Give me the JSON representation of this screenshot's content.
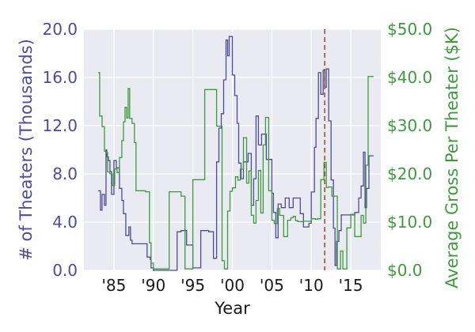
{
  "chart_data": {
    "type": "line",
    "xlabel": "Year",
    "ylabel_left": "# of Theaters (Thousands)",
    "ylabel_right": "Average Gross Per Theater ($K)",
    "xlim": [
      1981.2,
      2018.8
    ],
    "ylim_left": [
      0,
      20
    ],
    "ylim_right": [
      0,
      50
    ],
    "x_ticks": [
      1985,
      1990,
      1995,
      2000,
      2005,
      2010,
      2015
    ],
    "x_tick_labels": [
      "'85",
      "'90",
      "'95",
      "'00",
      "'05",
      "'10",
      "'15"
    ],
    "y_left_ticks": [
      0,
      4,
      8,
      12,
      16,
      20
    ],
    "y_left_tick_labels": [
      "0.0",
      "4.0",
      "8.0",
      "12.0",
      "16.0",
      "20.0"
    ],
    "y_right_ticks": [
      0,
      10,
      20,
      30,
      40,
      50
    ],
    "y_right_tick_labels": [
      "$0.0",
      "$10.0",
      "$20.0",
      "$30.0",
      "$40.0",
      "$50.0"
    ],
    "grid": true,
    "vline": {
      "x": 2011.7,
      "color": "#a0522d",
      "style": "dashed"
    },
    "colors": {
      "left": "#4c4c9a",
      "right": "#3f9a3f",
      "background": "#eaeaf2",
      "grid": "#ffffff"
    },
    "series": [
      {
        "name": "# of Theaters (Thousands)",
        "axis": "left",
        "color": "#4c4c9a",
        "x": [
          1983.0,
          1983.3,
          1983.5,
          1983.8,
          1984.0,
          1984.1,
          1984.3,
          1984.5,
          1984.7,
          1985.0,
          1985.3,
          1985.7,
          1986.0,
          1986.2,
          1986.5,
          1986.9,
          1987.1,
          1987.3,
          1987.6,
          1988.0,
          1989.2,
          1989.6,
          1989.7,
          1990.0,
          1991.5,
          1992.0,
          1992.3,
          1992.7,
          1993.0,
          1993.5,
          1993.8,
          1994.2,
          1995.0,
          1995.5,
          1996.0,
          1996.5,
          1997.0,
          1997.4,
          1997.6,
          1998.0,
          1998.3,
          1998.6,
          1998.9,
          1999.2,
          1999.4,
          1999.6,
          2000.0,
          2000.3,
          2000.6,
          2000.8,
          2001.1,
          2001.4,
          2002.0,
          2002.4,
          2002.7,
          2003.0,
          2003.3,
          2003.7,
          2004.0,
          2004.3,
          2005.0,
          2005.2,
          2005.5,
          2005.8,
          2006.2,
          2006.7,
          2007.2,
          2007.7,
          2008.2,
          2008.6,
          2009.0,
          2009.4,
          2009.7,
          2010.0,
          2010.4,
          2010.6,
          2010.9,
          2011.2,
          2011.5,
          2011.7,
          2011.9,
          2012.2,
          2012.5,
          2012.8,
          2013.0,
          2013.2,
          2013.5,
          2013.8,
          2014.2,
          2014.5,
          2015.0,
          2015.5,
          2016.0,
          2016.3,
          2016.6,
          2016.8,
          2017.0,
          2017.3,
          2017.6,
          2017.9
        ],
        "y": [
          6.6,
          5.0,
          6.3,
          5.4,
          10.0,
          9.4,
          9.1,
          8.2,
          6.3,
          9.1,
          8.5,
          6.8,
          5.8,
          4.7,
          2.9,
          3.6,
          2.5,
          2.2,
          2.2,
          2.2,
          1.1,
          0.9,
          0.2,
          0.0,
          0.0,
          0.0,
          0.0,
          0.0,
          3.2,
          3.3,
          3.3,
          2.1,
          0.2,
          0.2,
          3.3,
          3.3,
          3.2,
          3.2,
          1.0,
          9.0,
          11.8,
          13.0,
          15.8,
          19.1,
          17.8,
          19.4,
          16.2,
          14.5,
          12.2,
          8.9,
          7.6,
          9.0,
          9.7,
          5.4,
          7.6,
          12.8,
          10.4,
          11.3,
          11.3,
          9.2,
          6.4,
          4.8,
          2.7,
          5.5,
          5.2,
          6.0,
          5.2,
          6.0,
          6.0,
          4.7,
          3.6,
          3.6,
          3.9,
          6.5,
          10.2,
          12.6,
          16.4,
          14.6,
          16.6,
          15.2,
          16.7,
          12.4,
          7.5,
          3.5,
          0.4,
          2.4,
          3.3,
          4.6,
          4.6,
          4.6,
          4.6,
          4.8,
          6.0,
          7.0,
          9.8,
          5.2,
          6.8,
          9.5,
          9.5,
          9.5
        ]
      },
      {
        "name": "Average Gross Per Theater ($K)",
        "axis": "right",
        "color": "#3f9a3f",
        "x": [
          1983.0,
          1983.2,
          1983.5,
          1983.8,
          1984.0,
          1984.2,
          1984.5,
          1984.8,
          1985.1,
          1985.4,
          1985.7,
          1986.0,
          1986.2,
          1986.4,
          1986.6,
          1986.8,
          1987.0,
          1987.3,
          1987.6,
          1987.8,
          1988.1,
          1988.5,
          1989.0,
          1989.5,
          1989.7,
          1990.0,
          1991.0,
          1991.5,
          1992.0,
          1992.5,
          1993.0,
          1993.5,
          1994.0,
          1994.3,
          1994.6,
          1995.0,
          1996.0,
          1996.5,
          1997.0,
          1997.4,
          1997.7,
          1998.0,
          1998.3,
          1998.7,
          1999.0,
          1999.4,
          1999.7,
          2000.0,
          2000.4,
          2000.7,
          2001.0,
          2001.4,
          2001.8,
          2002.1,
          2002.4,
          2002.7,
          2003.0,
          2003.3,
          2003.6,
          2003.9,
          2004.2,
          2004.6,
          2005.0,
          2005.3,
          2005.7,
          2006.0,
          2006.5,
          2007.0,
          2007.4,
          2007.7,
          2008.0,
          2008.3,
          2008.6,
          2009.0,
          2009.5,
          2010.0,
          2010.5,
          2010.8,
          2011.2,
          2011.6,
          2011.9,
          2012.2,
          2012.6,
          2013.0,
          2013.3,
          2013.7,
          2014.0,
          2014.5,
          2015.0,
          2015.5,
          2016.0,
          2016.3,
          2016.6,
          2016.9,
          2017.2,
          2017.5,
          2017.9
        ],
        "y": [
          41.0,
          32.0,
          29.8,
          24.7,
          24.4,
          20.4,
          20.0,
          17.6,
          21.0,
          20.3,
          23.4,
          26.9,
          30.8,
          33.8,
          31.6,
          37.7,
          31.5,
          30.5,
          26.5,
          16.5,
          16.5,
          16.5,
          16.3,
          5.7,
          1.5,
          0.3,
          0.3,
          0.3,
          16.3,
          16.3,
          16.3,
          15.4,
          0.3,
          0.3,
          0.3,
          18.8,
          18.8,
          37.5,
          37.5,
          37.5,
          37.5,
          29.9,
          29.9,
          2.0,
          0.3,
          12.3,
          16.4,
          17.1,
          19.4,
          18.7,
          21.0,
          27.5,
          18.1,
          20.6,
          11.4,
          9.8,
          14.5,
          20.7,
          11.9,
          26.0,
          31.7,
          16.5,
          10.4,
          9.7,
          12.8,
          11.4,
          7.0,
          10.4,
          10.9,
          11.2,
          10.3,
          10.1,
          10.1,
          10.2,
          10.2,
          10.7,
          10.6,
          10.7,
          18.8,
          22.4,
          17.2,
          17.3,
          15.4,
          15.4,
          0.3,
          4.0,
          0.3,
          8.8,
          11.6,
          7.0,
          7.0,
          11.4,
          9.8,
          21.8,
          40.2,
          40.2,
          40.2
        ]
      }
    ]
  }
}
